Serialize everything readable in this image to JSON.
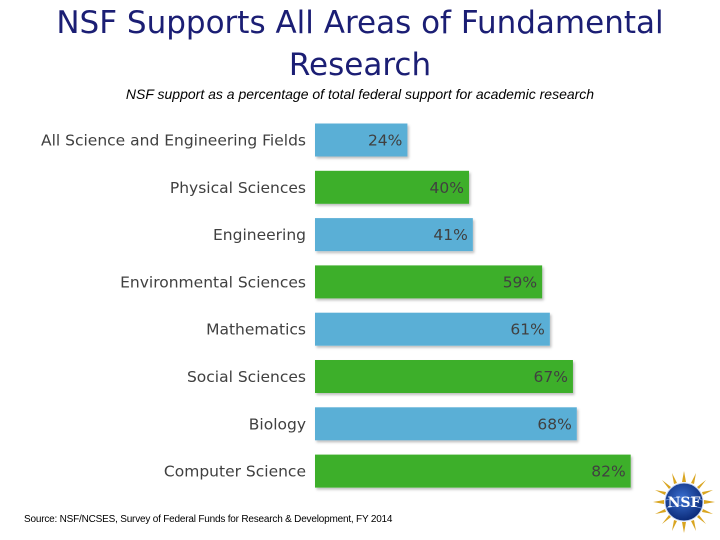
{
  "slide": {
    "title": "NSF Supports All Areas of Fundamental\nResearch",
    "source": "Source: NSF/NCSES, Survey of Federal Funds for Research & Development, FY 2014",
    "logo_text": "NSF"
  },
  "chart_data": {
    "type": "bar",
    "orientation": "horizontal",
    "title": "NSF support as a percentage of total federal support for academic research",
    "categories": [
      "All Science and Engineering Fields",
      "Physical Sciences",
      "Engineering",
      "Environmental Sciences",
      "Mathematics",
      "Social Sciences",
      "Biology",
      "Computer Science"
    ],
    "values": [
      24,
      40,
      41,
      59,
      61,
      67,
      68,
      82
    ],
    "value_labels": [
      "24%",
      "40%",
      "41%",
      "59%",
      "61%",
      "67%",
      "68%",
      "82%"
    ],
    "unit": "%",
    "xlim": [
      0,
      100
    ],
    "grid": false,
    "legend": "none",
    "colors": [
      "#5aafd6",
      "#3eaf2c",
      "#5aafd6",
      "#3eaf2c",
      "#5aafd6",
      "#3eaf2c",
      "#5aafd6",
      "#3eaf2c"
    ]
  }
}
